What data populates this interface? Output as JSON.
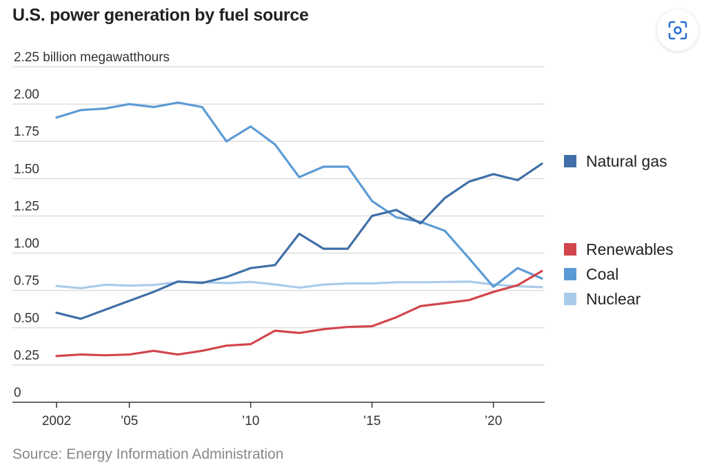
{
  "header": {
    "title": "U.S. power generation by fuel source"
  },
  "footer": {
    "source": "Source: Energy Information Administration"
  },
  "icons": {
    "lens": "lens-scan-icon"
  },
  "colors": {
    "natural_gas": "#3f6fa6",
    "renewables": "#d2454c",
    "coal": "#5b9bd5",
    "nuclear": "#aacbea",
    "grid": "#dddddd",
    "axis": "#333333"
  },
  "chart_data": {
    "type": "line",
    "title": "U.S. power generation by fuel source",
    "ylabel": "billion megawatthours",
    "top_tick_label": "2.25 billion megawatthours",
    "ylim": [
      0,
      2.25
    ],
    "xlim": [
      2002,
      2022
    ],
    "y_ticks": [
      0,
      0.25,
      0.5,
      0.75,
      1.0,
      1.25,
      1.5,
      1.75,
      2.0,
      2.25
    ],
    "y_tick_labels": [
      "0",
      "0.25",
      "0.50",
      "0.75",
      "1.00",
      "1.25",
      "1.50",
      "1.75",
      "2.00"
    ],
    "x_ticks": [
      2002,
      2005,
      2010,
      2015,
      2020
    ],
    "x_tick_labels": [
      "2002",
      "’05",
      "’10",
      "’15",
      "’20"
    ],
    "grid": true,
    "legend_position": "right",
    "x": [
      2002,
      2003,
      2004,
      2005,
      2006,
      2007,
      2008,
      2009,
      2010,
      2011,
      2012,
      2013,
      2014,
      2015,
      2016,
      2017,
      2018,
      2019,
      2020,
      2021,
      2022
    ],
    "series": [
      {
        "name": "Natural gas",
        "key": "natural_gas",
        "values": [
          0.6,
          0.56,
          0.62,
          0.68,
          0.74,
          0.81,
          0.8,
          0.84,
          0.9,
          0.92,
          1.13,
          1.03,
          1.03,
          1.25,
          1.29,
          1.2,
          1.37,
          1.48,
          1.53,
          1.49,
          1.6
        ]
      },
      {
        "name": "Renewables",
        "key": "renewables",
        "values": [
          0.31,
          0.32,
          0.315,
          0.32,
          0.345,
          0.32,
          0.345,
          0.38,
          0.39,
          0.48,
          0.465,
          0.49,
          0.505,
          0.51,
          0.57,
          0.645,
          0.665,
          0.685,
          0.74,
          0.785,
          0.88
        ]
      },
      {
        "name": "Coal",
        "key": "coal",
        "values": [
          1.91,
          1.96,
          1.97,
          2.0,
          1.98,
          2.01,
          1.98,
          1.75,
          1.85,
          1.73,
          1.51,
          1.58,
          1.58,
          1.35,
          1.24,
          1.21,
          1.15,
          0.965,
          0.775,
          0.9,
          0.83
        ]
      },
      {
        "name": "Nuclear",
        "key": "nuclear",
        "values": [
          0.78,
          0.765,
          0.788,
          0.782,
          0.787,
          0.806,
          0.806,
          0.799,
          0.807,
          0.79,
          0.769,
          0.789,
          0.797,
          0.797,
          0.805,
          0.805,
          0.807,
          0.809,
          0.79,
          0.778,
          0.772
        ]
      }
    ],
    "legend": [
      {
        "label": "Natural gas",
        "key": "natural_gas"
      },
      {
        "label": "Renewables",
        "key": "renewables"
      },
      {
        "label": "Coal",
        "key": "coal"
      },
      {
        "label": "Nuclear",
        "key": "nuclear"
      }
    ]
  }
}
